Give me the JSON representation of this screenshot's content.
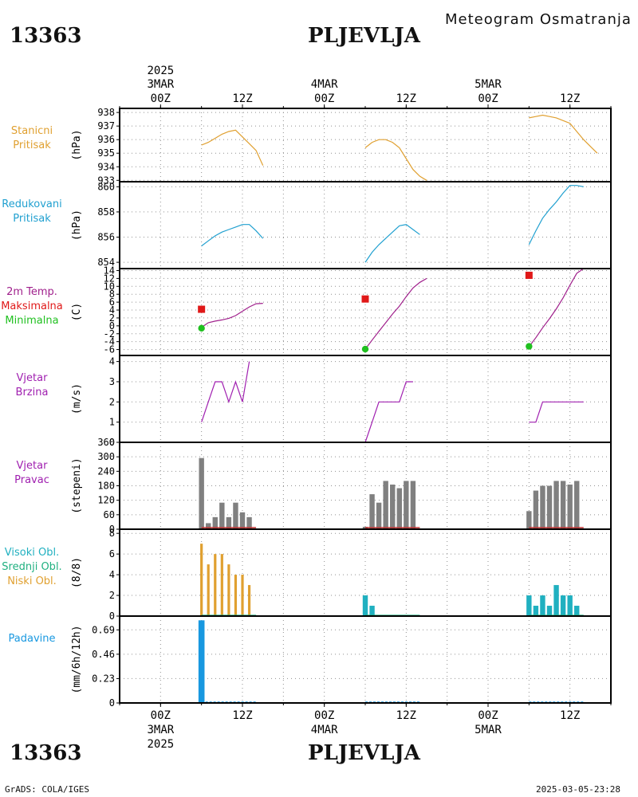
{
  "header": {
    "station_id": "13363",
    "station_name": "PLJEVLJA",
    "product_title": "Meteogram Osmatranja"
  },
  "footer": {
    "credit": "GrADS: COLA/IGES",
    "timestamp": "2025-03-05-23:28"
  },
  "time_axis": {
    "year": "2025",
    "days": [
      "3MAR",
      "4MAR",
      "5MAR"
    ],
    "top_ticks": [
      "00Z",
      "12Z",
      "00Z",
      "12Z",
      "00Z",
      "12Z"
    ],
    "bottom_ticks": [
      "00Z",
      "12Z",
      "00Z",
      "12Z",
      "00Z",
      "12Z"
    ],
    "range_hours": [
      -6,
      66
    ]
  },
  "colors": {
    "station_pressure": "#e0a030",
    "reduced_pressure": "#20a0d0",
    "temp_line": "#a0208c",
    "tmax": "#e01818",
    "tmin": "#20c020",
    "wind": "#a020b0",
    "wind_dir_bar": "#808080",
    "calm_line": "#c03030",
    "high_cloud": "#20b0c0",
    "mid_cloud": "#20b080",
    "low_cloud": "#e0a030",
    "precip": "#1898e0",
    "grid": "#909090"
  },
  "panels": {
    "station_pressure": {
      "label_lines": [
        "Stanicni",
        "Pritisak"
      ],
      "unit": "(hPa)"
    },
    "reduced_pressure": {
      "label_lines": [
        "Redukovani",
        "Pritisak"
      ],
      "unit": "(hPa)"
    },
    "temperature": {
      "label_lines": [
        "2m Temp.",
        "Maksimalna",
        "Minimalna"
      ],
      "unit": "(C)"
    },
    "wind_speed": {
      "label_lines": [
        "Vjetar",
        "Brzina"
      ],
      "unit": "(m/s)"
    },
    "wind_direction": {
      "label_lines": [
        "Vjetar",
        "Pravac"
      ],
      "unit": "(stepeni)"
    },
    "clouds": {
      "label_lines": [
        "Visoki Obl.",
        "Srednji Obl.",
        "Niski Obl."
      ],
      "unit": "(8/8)"
    },
    "precipitation": {
      "label_lines": [
        "Padavine"
      ],
      "unit": "(mm/6h/12h)"
    }
  },
  "chart_data": [
    {
      "type": "line",
      "name": "station_pressure",
      "ylabel": "(hPa)",
      "x_unit": "hours since 3MAR 00Z",
      "ylim": [
        932.9,
        938.3
      ],
      "yticks": [
        933,
        934,
        935,
        936,
        937,
        938
      ],
      "series": [
        {
          "segments": [
            [
              [
                6,
                935.6
              ],
              [
                7,
                935.8
              ],
              [
                8,
                936.1
              ],
              [
                9,
                936.4
              ],
              [
                10,
                936.6
              ],
              [
                11,
                936.7
              ],
              [
                12,
                936.2
              ],
              [
                13,
                935.7
              ],
              [
                14,
                935.2
              ],
              [
                15,
                934.1
              ]
            ],
            [
              [
                30,
                935.4
              ],
              [
                31,
                935.8
              ],
              [
                32,
                936.0
              ],
              [
                33,
                936.0
              ],
              [
                34,
                935.8
              ],
              [
                35,
                935.4
              ],
              [
                36,
                934.6
              ],
              [
                37,
                933.8
              ],
              [
                38,
                933.3
              ],
              [
                39,
                933.0
              ]
            ],
            [
              [
                54,
                937.6
              ],
              [
                55,
                937.7
              ],
              [
                56,
                937.8
              ],
              [
                57,
                937.7
              ],
              [
                58,
                937.6
              ],
              [
                59,
                937.4
              ],
              [
                60,
                937.2
              ],
              [
                61,
                936.6
              ],
              [
                62,
                936.0
              ],
              [
                63,
                935.5
              ],
              [
                64,
                935.0
              ]
            ]
          ]
        }
      ]
    },
    {
      "type": "line",
      "name": "reduced_pressure",
      "ylabel": "(hPa)",
      "x_unit": "hours since 3MAR 00Z",
      "ylim": [
        853.5,
        860.4
      ],
      "yticks": [
        854,
        856,
        858,
        860
      ],
      "series": [
        {
          "segments": [
            [
              [
                6,
                855.3
              ],
              [
                7,
                855.7
              ],
              [
                8,
                856.1
              ],
              [
                9,
                856.4
              ],
              [
                10,
                856.6
              ],
              [
                11,
                856.8
              ],
              [
                12,
                857.0
              ],
              [
                13,
                857.0
              ],
              [
                14,
                856.5
              ],
              [
                15,
                855.9
              ]
            ],
            [
              [
                30,
                854.0
              ],
              [
                31,
                854.8
              ],
              [
                32,
                855.4
              ],
              [
                33,
                855.9
              ],
              [
                34,
                856.4
              ],
              [
                35,
                856.9
              ],
              [
                36,
                857.0
              ],
              [
                37,
                856.6
              ],
              [
                38,
                856.2
              ]
            ],
            [
              [
                54,
                855.4
              ],
              [
                55,
                856.5
              ],
              [
                56,
                857.5
              ],
              [
                57,
                858.2
              ],
              [
                58,
                858.8
              ],
              [
                59,
                859.5
              ],
              [
                60,
                860.1
              ],
              [
                61,
                860.1
              ],
              [
                62,
                860.0
              ]
            ]
          ]
        }
      ]
    },
    {
      "type": "line",
      "name": "temperature",
      "ylabel": "(C)",
      "x_unit": "hours since 3MAR 00Z",
      "ylim": [
        -7.5,
        14.5
      ],
      "yticks": [
        -6,
        -4,
        -2,
        0,
        2,
        4,
        6,
        8,
        10,
        12,
        14
      ],
      "series": [
        {
          "role": "temp",
          "segments": [
            [
              [
                6,
                -0.4
              ],
              [
                7,
                0.8
              ],
              [
                8,
                1.2
              ],
              [
                9,
                1.5
              ],
              [
                10,
                1.9
              ],
              [
                11,
                2.6
              ],
              [
                12,
                3.7
              ],
              [
                13,
                4.8
              ],
              [
                14,
                5.6
              ],
              [
                15,
                5.7
              ]
            ],
            [
              [
                30,
                -5.9
              ],
              [
                31,
                -3.6
              ],
              [
                32,
                -1.4
              ],
              [
                33,
                0.8
              ],
              [
                34,
                3.0
              ],
              [
                35,
                5.0
              ],
              [
                36,
                7.4
              ],
              [
                37,
                9.6
              ],
              [
                38,
                11.0
              ],
              [
                39,
                12.0
              ]
            ],
            [
              [
                54,
                -5.3
              ],
              [
                55,
                -3.0
              ],
              [
                56,
                -0.5
              ],
              [
                57,
                1.8
              ],
              [
                58,
                4.3
              ],
              [
                59,
                7.1
              ],
              [
                60,
                10.3
              ],
              [
                61,
                13.3
              ],
              [
                62,
                15.2
              ]
            ]
          ]
        },
        {
          "role": "max",
          "points": [
            [
              6,
              4.2
            ],
            [
              30,
              6.8
            ],
            [
              54,
              12.8
            ]
          ]
        },
        {
          "role": "min",
          "points": [
            [
              6,
              -0.6
            ],
            [
              30,
              -5.9
            ],
            [
              54,
              -5.2
            ]
          ]
        }
      ]
    },
    {
      "type": "line",
      "name": "wind_speed",
      "ylabel": "(m/s)",
      "x_unit": "hours since 3MAR 00Z",
      "ylim": [
        0,
        4.3
      ],
      "yticks": [
        0,
        1,
        2,
        3,
        4
      ],
      "series": [
        {
          "segments": [
            [
              [
                6,
                1
              ],
              [
                7,
                2
              ],
              [
                8,
                3
              ],
              [
                9,
                3
              ],
              [
                10,
                2
              ],
              [
                11,
                3
              ],
              [
                12,
                2
              ],
              [
                13,
                4
              ]
            ],
            [
              [
                30,
                0
              ],
              [
                31,
                1
              ],
              [
                32,
                2
              ],
              [
                33,
                2
              ],
              [
                34,
                2
              ],
              [
                35,
                2
              ],
              [
                36,
                3
              ],
              [
                37,
                3
              ]
            ],
            [
              [
                54,
                1
              ],
              [
                55,
                1
              ],
              [
                56,
                2
              ],
              [
                57,
                2
              ],
              [
                58,
                2
              ],
              [
                59,
                2
              ],
              [
                60,
                2
              ],
              [
                61,
                2
              ],
              [
                62,
                2
              ]
            ]
          ]
        }
      ]
    },
    {
      "type": "bar",
      "name": "wind_direction",
      "ylabel": "(stepeni)",
      "x_unit": "hours since 3MAR 00Z",
      "ylim": [
        0,
        360
      ],
      "yticks": [
        0,
        60,
        120,
        180,
        240,
        300,
        360
      ],
      "values": [
        [
          6,
          295
        ],
        [
          7,
          25
        ],
        [
          8,
          50
        ],
        [
          9,
          110
        ],
        [
          10,
          50
        ],
        [
          11,
          110
        ],
        [
          12,
          70
        ],
        [
          13,
          50
        ],
        [
          30,
          10
        ],
        [
          31,
          145
        ],
        [
          32,
          110
        ],
        [
          33,
          200
        ],
        [
          34,
          185
        ],
        [
          35,
          170
        ],
        [
          36,
          200
        ],
        [
          37,
          200
        ],
        [
          54,
          75
        ],
        [
          55,
          160
        ],
        [
          56,
          180
        ],
        [
          57,
          180
        ],
        [
          58,
          200
        ],
        [
          59,
          200
        ],
        [
          60,
          185
        ],
        [
          61,
          200
        ]
      ],
      "calm_line": [
        [
          6,
          14
        ],
        [
          30,
          38
        ],
        [
          54,
          62
        ]
      ]
    },
    {
      "type": "bar",
      "name": "clouds",
      "ylabel": "(8/8)",
      "x_unit": "hours since 3MAR 00Z",
      "ylim": [
        0,
        8.4
      ],
      "yticks": [
        0,
        2,
        4,
        6,
        8
      ],
      "series": [
        {
          "role": "low",
          "values": [
            [
              6,
              7
            ],
            [
              7,
              5
            ],
            [
              8,
              6
            ],
            [
              9,
              6
            ],
            [
              10,
              5
            ],
            [
              11,
              4
            ],
            [
              12,
              4
            ],
            [
              13,
              3
            ]
          ]
        },
        {
          "role": "high",
          "values": [
            [
              30,
              2
            ],
            [
              31,
              1
            ],
            [
              54,
              2
            ],
            [
              55,
              1
            ],
            [
              56,
              2
            ],
            [
              57,
              1
            ],
            [
              58,
              3
            ],
            [
              59,
              2
            ],
            [
              60,
              2
            ],
            [
              61,
              1
            ]
          ]
        },
        {
          "role": "mid_baseline",
          "segments": [
            [
              6,
              14
            ],
            [
              30,
              38
            ],
            [
              54,
              62
            ]
          ]
        }
      ]
    },
    {
      "type": "bar",
      "name": "precipitation",
      "ylabel": "(mm/6h/12h)",
      "x_unit": "hours since 3MAR 00Z",
      "ylim": [
        0,
        0.82
      ],
      "yticks": [
        0,
        0.23,
        0.46,
        0.69
      ],
      "values": [
        [
          6,
          0.78
        ]
      ],
      "baseline": [
        [
          6,
          14
        ],
        [
          30,
          38
        ],
        [
          54,
          62
        ]
      ]
    }
  ]
}
